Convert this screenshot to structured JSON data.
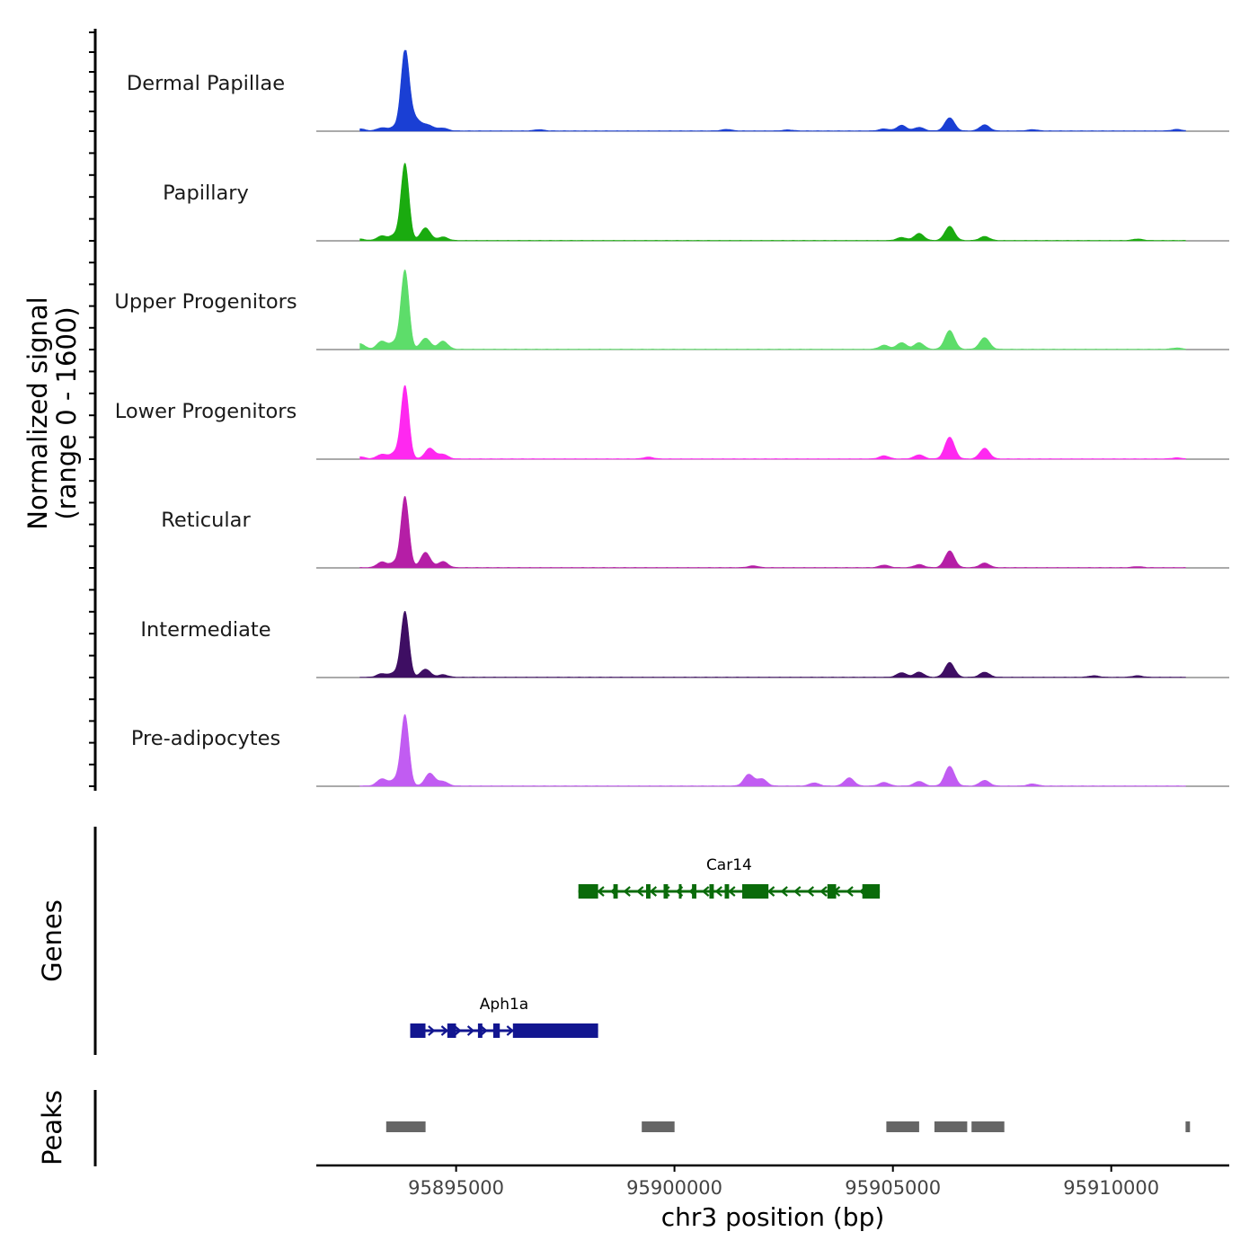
{
  "chart_data": {
    "type": "area",
    "title": "",
    "ylabel_lines": [
      "Normalized signal",
      "(range 0 - 1600)"
    ],
    "xlabel": "chr3 position (bp)",
    "signal_range": [
      0,
      1600
    ],
    "xlim": [
      95891800,
      95912700
    ],
    "x_ticks": [
      95895000,
      95900000,
      95905000,
      95910000
    ],
    "x_tick_labels": [
      "95895000",
      "95900000",
      "95905000",
      "95910000"
    ],
    "tracks": [
      {
        "name": "Dermal Papillae",
        "color": "#1a3fd4",
        "peaks": [
          [
            95892800,
            40
          ],
          [
            95893300,
            60
          ],
          [
            95893600,
            80
          ],
          [
            95893830,
            1550
          ],
          [
            95894000,
            260
          ],
          [
            95894200,
            110
          ],
          [
            95894400,
            90
          ],
          [
            95894700,
            55
          ],
          [
            95896900,
            25
          ],
          [
            95901200,
            30
          ],
          [
            95902600,
            20
          ],
          [
            95904800,
            40
          ],
          [
            95905200,
            110
          ],
          [
            95905600,
            70
          ],
          [
            95906300,
            260
          ],
          [
            95907100,
            120
          ],
          [
            95908200,
            25
          ],
          [
            95911500,
            30
          ]
        ]
      },
      {
        "name": "Papillary",
        "color": "#1aab0f",
        "peaks": [
          [
            95892800,
            30
          ],
          [
            95893300,
            90
          ],
          [
            95893600,
            110
          ],
          [
            95893830,
            1520
          ],
          [
            95894300,
            250
          ],
          [
            95894700,
            70
          ],
          [
            95905200,
            60
          ],
          [
            95905600,
            140
          ],
          [
            95906300,
            280
          ],
          [
            95907100,
            80
          ],
          [
            95910600,
            30
          ]
        ]
      },
      {
        "name": "Upper Progenitors",
        "color": "#5ddd6a",
        "peaks": [
          [
            95892800,
            110
          ],
          [
            95893300,
            160
          ],
          [
            95893600,
            140
          ],
          [
            95893830,
            1560
          ],
          [
            95894300,
            220
          ],
          [
            95894700,
            160
          ],
          [
            95904800,
            80
          ],
          [
            95905200,
            130
          ],
          [
            95905600,
            130
          ],
          [
            95906300,
            370
          ],
          [
            95907100,
            230
          ],
          [
            95911500,
            25
          ]
        ]
      },
      {
        "name": "Lower Progenitors",
        "color": "#ff28f0",
        "peaks": [
          [
            95892800,
            40
          ],
          [
            95893300,
            90
          ],
          [
            95893600,
            120
          ],
          [
            95893830,
            1440
          ],
          [
            95894400,
            210
          ],
          [
            95894700,
            90
          ],
          [
            95899400,
            35
          ],
          [
            95904800,
            60
          ],
          [
            95905600,
            80
          ],
          [
            95906300,
            430
          ],
          [
            95907100,
            210
          ],
          [
            95911500,
            20
          ]
        ]
      },
      {
        "name": "Reticular",
        "color": "#b51ea6",
        "peaks": [
          [
            95893300,
            110
          ],
          [
            95893600,
            100
          ],
          [
            95893830,
            1400
          ],
          [
            95894300,
            300
          ],
          [
            95894700,
            120
          ],
          [
            95901800,
            35
          ],
          [
            95904800,
            50
          ],
          [
            95905600,
            60
          ],
          [
            95906300,
            330
          ],
          [
            95907100,
            90
          ],
          [
            95910600,
            20
          ]
        ]
      },
      {
        "name": "Intermediate",
        "color": "#3e0e63",
        "peaks": [
          [
            95893300,
            70
          ],
          [
            95893600,
            90
          ],
          [
            95893830,
            1300
          ],
          [
            95894300,
            160
          ],
          [
            95894700,
            50
          ],
          [
            95905200,
            90
          ],
          [
            95905600,
            100
          ],
          [
            95906300,
            290
          ],
          [
            95907100,
            100
          ],
          [
            95909600,
            30
          ],
          [
            95910600,
            30
          ]
        ]
      },
      {
        "name": "Pre-adipocytes",
        "color": "#c15cf2",
        "peaks": [
          [
            95893300,
            140
          ],
          [
            95893600,
            120
          ],
          [
            95893830,
            1400
          ],
          [
            95894400,
            250
          ],
          [
            95894700,
            90
          ],
          [
            95901700,
            230
          ],
          [
            95902000,
            140
          ],
          [
            95903200,
            60
          ],
          [
            95904000,
            160
          ],
          [
            95904800,
            70
          ],
          [
            95905600,
            90
          ],
          [
            95906300,
            390
          ],
          [
            95907100,
            110
          ],
          [
            95908200,
            40
          ]
        ]
      }
    ],
    "genes": [
      {
        "name": "Car14",
        "strand": "-",
        "color": "#0a6b0a",
        "start": 95897800,
        "end": 95904700,
        "row": 1,
        "exons": [
          [
            95897800,
            95898250
          ],
          [
            95898600,
            95898700
          ],
          [
            95899350,
            95899450
          ],
          [
            95899750,
            95899850
          ],
          [
            95900100,
            95900150
          ],
          [
            95900400,
            95900500
          ],
          [
            95900800,
            95900900
          ],
          [
            95901150,
            95901250
          ],
          [
            95901550,
            95902150
          ],
          [
            95903500,
            95903700
          ],
          [
            95904300,
            95904700
          ]
        ]
      },
      {
        "name": "Aph1a",
        "strand": "+",
        "color": "#121690",
        "start": 95893950,
        "end": 95898250,
        "row": 2,
        "exons": [
          [
            95893950,
            95894300
          ],
          [
            95894800,
            95895000
          ],
          [
            95895500,
            95895600
          ],
          [
            95895850,
            95896000
          ],
          [
            95896300,
            95898250
          ]
        ]
      }
    ],
    "peaks": [
      [
        95893400,
        95894300
      ],
      [
        95899250,
        95900000
      ],
      [
        95904850,
        95905600
      ],
      [
        95905950,
        95906700
      ],
      [
        95906800,
        95907550
      ],
      [
        95911700,
        95911800
      ]
    ],
    "panel_labels": {
      "genes": "Genes",
      "peaks": "Peaks"
    }
  }
}
